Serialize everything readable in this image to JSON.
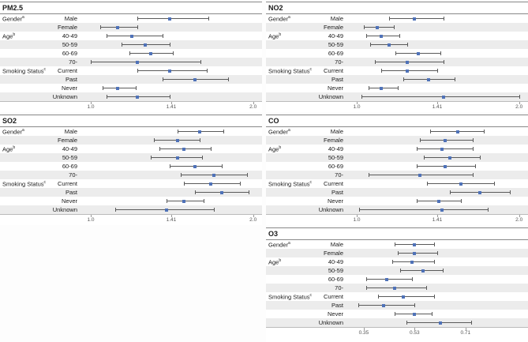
{
  "colors": {
    "point": "#4f72b8",
    "ci_line": "#5a5a5a",
    "row_alt": "#ececec",
    "axis_text": "#555555",
    "border": "#888888"
  },
  "chart_data": [
    {
      "type": "forest",
      "title": "PM2.5",
      "xscale": "log",
      "xlim": [
        0.97,
        2.05
      ],
      "ticks": [
        {
          "v": 1.0,
          "label": "1.0"
        },
        {
          "v": 1.41,
          "label": "1.41"
        },
        {
          "v": 2.0,
          "label": "2.0"
        }
      ],
      "rows": [
        {
          "group": "Gender",
          "sup": "a",
          "level": "Male",
          "est": 1.4,
          "lo": 1.22,
          "hi": 1.65
        },
        {
          "group": "",
          "sup": "",
          "level": "Female",
          "est": 1.12,
          "lo": 1.04,
          "hi": 1.22
        },
        {
          "group": "Age",
          "sup": "b",
          "level": "40-49",
          "est": 1.19,
          "lo": 1.07,
          "hi": 1.36
        },
        {
          "group": "",
          "sup": "",
          "level": "50-59",
          "est": 1.26,
          "lo": 1.14,
          "hi": 1.4
        },
        {
          "group": "",
          "sup": "",
          "level": "60-69",
          "est": 1.29,
          "lo": 1.18,
          "hi": 1.42
        },
        {
          "group": "",
          "sup": "",
          "level": "70-",
          "est": 1.22,
          "lo": 1.0,
          "hi": 1.6
        },
        {
          "group": "Smoking Status",
          "sup": "c",
          "level": "Current",
          "est": 1.4,
          "lo": 1.22,
          "hi": 1.64
        },
        {
          "group": "",
          "sup": "",
          "level": "Past",
          "est": 1.56,
          "lo": 1.36,
          "hi": 1.8
        },
        {
          "group": "",
          "sup": "",
          "level": "Never",
          "est": 1.12,
          "lo": 1.05,
          "hi": 1.21
        },
        {
          "group": "",
          "sup": "",
          "level": "Unknown",
          "est": 1.22,
          "lo": 1.07,
          "hi": 1.4
        }
      ]
    },
    {
      "type": "forest",
      "title": "NO2",
      "xscale": "log",
      "xlim": [
        0.97,
        2.05
      ],
      "ticks": [
        {
          "v": 1.0,
          "label": "1.0"
        },
        {
          "v": 1.41,
          "label": "1.41"
        },
        {
          "v": 2.0,
          "label": "2.0"
        }
      ],
      "rows": [
        {
          "group": "Gender",
          "sup": "a",
          "level": "Male",
          "est": 1.28,
          "lo": 1.15,
          "hi": 1.45
        },
        {
          "group": "",
          "sup": "",
          "level": "Female",
          "est": 1.09,
          "lo": 1.03,
          "hi": 1.17
        },
        {
          "group": "Age",
          "sup": "b",
          "level": "40-49",
          "est": 1.11,
          "lo": 1.04,
          "hi": 1.2
        },
        {
          "group": "",
          "sup": "",
          "level": "50-59",
          "est": 1.15,
          "lo": 1.06,
          "hi": 1.24
        },
        {
          "group": "",
          "sup": "",
          "level": "60-69",
          "est": 1.3,
          "lo": 1.18,
          "hi": 1.43
        },
        {
          "group": "",
          "sup": "",
          "level": "70-",
          "est": 1.24,
          "lo": 1.08,
          "hi": 1.45
        },
        {
          "group": "Smoking Status",
          "sup": "c",
          "level": "Current",
          "est": 1.24,
          "lo": 1.11,
          "hi": 1.41
        },
        {
          "group": "",
          "sup": "",
          "level": "Past",
          "est": 1.36,
          "lo": 1.22,
          "hi": 1.52
        },
        {
          "group": "",
          "sup": "",
          "level": "Never",
          "est": 1.11,
          "lo": 1.05,
          "hi": 1.19
        },
        {
          "group": "",
          "sup": "",
          "level": "Unknown",
          "est": 1.45,
          "lo": 1.02,
          "hi": 2.0
        }
      ]
    },
    {
      "type": "forest",
      "title": "SO2",
      "xscale": "log",
      "xlim": [
        0.97,
        2.05
      ],
      "ticks": [
        {
          "v": 1.0,
          "label": "1.0"
        },
        {
          "v": 1.41,
          "label": "1.41"
        },
        {
          "v": 2.0,
          "label": "2.0"
        }
      ],
      "rows": [
        {
          "group": "Gender",
          "sup": "a",
          "level": "Male",
          "est": 1.59,
          "lo": 1.45,
          "hi": 1.76
        },
        {
          "group": "",
          "sup": "",
          "level": "Female",
          "est": 1.45,
          "lo": 1.31,
          "hi": 1.59
        },
        {
          "group": "Age",
          "sup": "b",
          "level": "40-49",
          "est": 1.49,
          "lo": 1.34,
          "hi": 1.67
        },
        {
          "group": "",
          "sup": "",
          "level": "50-59",
          "est": 1.45,
          "lo": 1.29,
          "hi": 1.61
        },
        {
          "group": "",
          "sup": "",
          "level": "60-69",
          "est": 1.56,
          "lo": 1.4,
          "hi": 1.75
        },
        {
          "group": "",
          "sup": "",
          "level": "70-",
          "est": 1.69,
          "lo": 1.47,
          "hi": 1.95
        },
        {
          "group": "Smoking Status",
          "sup": "c",
          "level": "Current",
          "est": 1.67,
          "lo": 1.49,
          "hi": 1.89
        },
        {
          "group": "",
          "sup": "",
          "level": "Past",
          "est": 1.75,
          "lo": 1.56,
          "hi": 1.96
        },
        {
          "group": "",
          "sup": "",
          "level": "Never",
          "est": 1.49,
          "lo": 1.38,
          "hi": 1.62
        },
        {
          "group": "",
          "sup": "",
          "level": "Unknown",
          "est": 1.38,
          "lo": 1.11,
          "hi": 1.69
        }
      ]
    },
    {
      "type": "forest",
      "title": "CO",
      "xscale": "log",
      "xlim": [
        0.97,
        2.05
      ],
      "ticks": [
        {
          "v": 1.0,
          "label": "1.0"
        },
        {
          "v": 1.41,
          "label": "1.41"
        },
        {
          "v": 2.0,
          "label": "2.0"
        }
      ],
      "rows": [
        {
          "group": "Gender",
          "sup": "a",
          "level": "Male",
          "est": 1.54,
          "lo": 1.37,
          "hi": 1.72
        },
        {
          "group": "",
          "sup": "",
          "level": "Female",
          "est": 1.46,
          "lo": 1.31,
          "hi": 1.64
        },
        {
          "group": "Age",
          "sup": "b",
          "level": "40-49",
          "est": 1.44,
          "lo": 1.29,
          "hi": 1.64
        },
        {
          "group": "",
          "sup": "",
          "level": "50-59",
          "est": 1.49,
          "lo": 1.33,
          "hi": 1.69
        },
        {
          "group": "",
          "sup": "",
          "level": "60-69",
          "est": 1.46,
          "lo": 1.29,
          "hi": 1.66
        },
        {
          "group": "",
          "sup": "",
          "level": "70-",
          "est": 1.31,
          "lo": 1.05,
          "hi": 1.64
        },
        {
          "group": "Smoking Status",
          "sup": "c",
          "level": "Current",
          "est": 1.56,
          "lo": 1.35,
          "hi": 1.8
        },
        {
          "group": "",
          "sup": "",
          "level": "Past",
          "est": 1.69,
          "lo": 1.49,
          "hi": 1.92
        },
        {
          "group": "",
          "sup": "",
          "level": "Never",
          "est": 1.42,
          "lo": 1.29,
          "hi": 1.56
        },
        {
          "group": "",
          "sup": "",
          "level": "Unknown",
          "est": 1.44,
          "lo": 1.01,
          "hi": 1.75
        }
      ]
    },
    {
      "type": "forest",
      "title": "O3",
      "xscale": "linear",
      "xlim": [
        0.3,
        0.92
      ],
      "ticks": [
        {
          "v": 0.35,
          "label": "0.35"
        },
        {
          "v": 0.53,
          "label": "0.53"
        },
        {
          "v": 0.71,
          "label": "0.71"
        }
      ],
      "rows": [
        {
          "group": "Gender",
          "sup": "a",
          "level": "Male",
          "est": 0.53,
          "lo": 0.46,
          "hi": 0.6
        },
        {
          "group": "",
          "sup": "",
          "level": "Female",
          "est": 0.53,
          "lo": 0.47,
          "hi": 0.61
        },
        {
          "group": "Age",
          "sup": "b",
          "level": "40-49",
          "est": 0.52,
          "lo": 0.45,
          "hi": 0.6
        },
        {
          "group": "",
          "sup": "",
          "level": "50-59",
          "est": 0.56,
          "lo": 0.48,
          "hi": 0.63
        },
        {
          "group": "",
          "sup": "",
          "level": "60-69",
          "est": 0.43,
          "lo": 0.36,
          "hi": 0.52
        },
        {
          "group": "",
          "sup": "",
          "level": "70-",
          "est": 0.46,
          "lo": 0.36,
          "hi": 0.57
        },
        {
          "group": "Smoking Status",
          "sup": "c",
          "level": "Current",
          "est": 0.49,
          "lo": 0.4,
          "hi": 0.6
        },
        {
          "group": "",
          "sup": "",
          "level": "Past",
          "est": 0.42,
          "lo": 0.33,
          "hi": 0.53
        },
        {
          "group": "",
          "sup": "",
          "level": "Never",
          "est": 0.53,
          "lo": 0.46,
          "hi": 0.59
        },
        {
          "group": "",
          "sup": "",
          "level": "Unknown",
          "est": 0.62,
          "lo": 0.5,
          "hi": 0.73
        }
      ]
    }
  ]
}
